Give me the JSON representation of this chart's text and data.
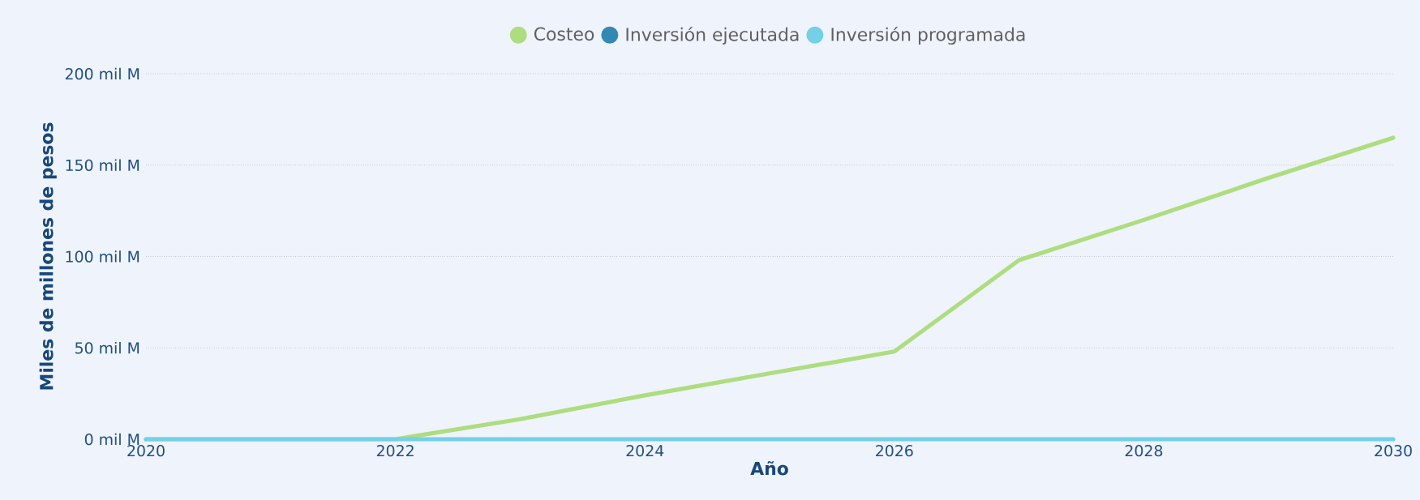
{
  "chart_data": {
    "type": "line",
    "xlabel": "Año",
    "ylabel": "Miles de millones de pesos",
    "x": [
      2020,
      2021,
      2022,
      2023,
      2024,
      2025,
      2026,
      2027,
      2028,
      2029,
      2030
    ],
    "series": [
      {
        "name": "Costeo",
        "color": "#aedd7f",
        "values": [
          0,
          0,
          0,
          11,
          24,
          36,
          48,
          98,
          120,
          143,
          165
        ]
      },
      {
        "name": "Inversión ejecutada",
        "color": "#3388b4",
        "values": [
          null,
          null,
          null,
          null,
          null,
          null,
          null,
          null,
          null,
          null,
          null
        ]
      },
      {
        "name": "Inversión programada",
        "color": "#74d0e6",
        "values": [
          0,
          0,
          0,
          0,
          0,
          0,
          0,
          0,
          0,
          0,
          0
        ]
      }
    ],
    "xlim": [
      2020,
      2030
    ],
    "xticks": [
      2020,
      2022,
      2024,
      2026,
      2028,
      2030
    ],
    "ylim": [
      0,
      200
    ],
    "yticks": [
      {
        "value": 0,
        "label": "0 mil M"
      },
      {
        "value": 50,
        "label": "50 mil M"
      },
      {
        "value": 100,
        "label": "100 mil M"
      },
      {
        "value": 150,
        "label": "150 mil M"
      },
      {
        "value": 200,
        "label": "200 mil M"
      }
    ],
    "grid": "y",
    "legend": "top",
    "marker": "none",
    "line_style": "solid"
  }
}
